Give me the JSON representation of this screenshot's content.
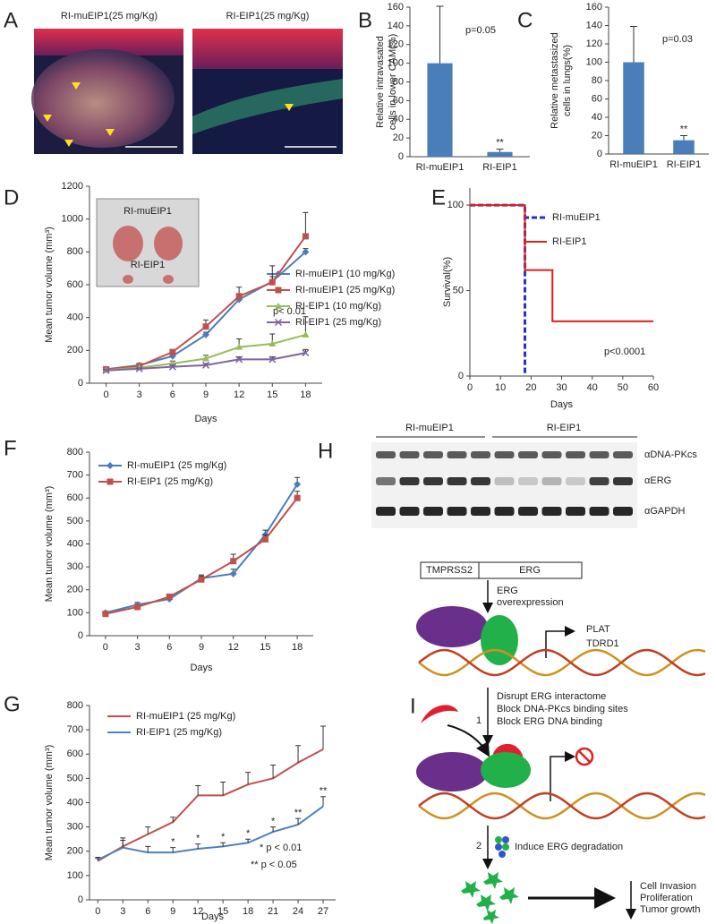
{
  "panel_a": {
    "panel_label": "A",
    "images": [
      {
        "title": "RI-muEIP1(25 mg/Kg)"
      },
      {
        "title": "RI-EIP1(25 mg/Kg)"
      }
    ]
  },
  "chart_data": [
    {
      "type": "bar",
      "panel_label": "B",
      "ylabel": [
        "Relative intravasated",
        "cells in lower CAM(%)"
      ],
      "categories": [
        "RI-muEIP1",
        "RI-EIP1"
      ],
      "values": [
        100,
        5
      ],
      "errors": [
        61,
        3
      ],
      "significance": [
        null,
        "**"
      ],
      "color": "#4a7ebb",
      "ylim": [
        0,
        160
      ],
      "yticks": [
        0,
        20,
        40,
        60,
        80,
        100,
        120,
        140,
        160
      ],
      "annotations": [
        "p=0.05"
      ]
    },
    {
      "type": "bar",
      "panel_label": "C",
      "ylabel": [
        "Relative metastasized",
        "cells in lungs(%)"
      ],
      "categories": [
        "RI-muEIP1",
        "RI-EIP1"
      ],
      "values": [
        100,
        15
      ],
      "errors": [
        39,
        5
      ],
      "significance": [
        null,
        "**"
      ],
      "color": "#4a7ebb",
      "ylim": [
        0,
        160
      ],
      "yticks": [
        0,
        20,
        40,
        60,
        80,
        100,
        120,
        140,
        160
      ],
      "annotations": [
        "p=0.03"
      ]
    },
    {
      "type": "line",
      "panel_label": "D",
      "xlabel": "Days",
      "ylabel": "Mean tumor volume (mm³)",
      "x": [
        0,
        3,
        6,
        9,
        12,
        15,
        18
      ],
      "xlim": [
        -1.5,
        19.5
      ],
      "xticks": [
        0,
        3,
        6,
        9,
        12,
        15,
        18
      ],
      "ylim": [
        0,
        1200
      ],
      "yticks": [
        0,
        200,
        400,
        600,
        800,
        1000,
        1200
      ],
      "series": [
        {
          "name": "RI-muEIP1 (10 mg/Kg)",
          "color": "#4a7ebb",
          "marker": "diamond",
          "values": [
            85,
            110,
            165,
            295,
            510,
            620,
            800
          ],
          "errors": [
            5,
            10,
            10,
            15,
            20,
            30,
            20
          ]
        },
        {
          "name": "RI-muEIP1 (25 mg/Kg)",
          "color": "#c0504d",
          "marker": "square",
          "values": [
            85,
            105,
            190,
            345,
            530,
            615,
            895
          ],
          "errors": [
            5,
            10,
            15,
            40,
            55,
            100,
            145
          ]
        },
        {
          "name": "RI-EIP1 (10 mg/Kg)",
          "color": "#9bbb59",
          "marker": "triangle",
          "values": [
            80,
            95,
            120,
            150,
            220,
            240,
            295
          ],
          "errors": [
            5,
            5,
            15,
            20,
            50,
            60,
            110
          ]
        },
        {
          "name": "RI-EIP1 (25 mg/Kg)",
          "color": "#8064a2",
          "marker": "x",
          "values": [
            78,
            88,
            100,
            110,
            145,
            145,
            185
          ],
          "errors": [
            5,
            5,
            10,
            10,
            15,
            15,
            20
          ]
        }
      ],
      "annotations": [
        "p< 0.01"
      ],
      "inset_labels": [
        "RI-muEIP1",
        "RI-EIP1"
      ]
    },
    {
      "type": "step",
      "panel_label": "E",
      "xlabel": "Days",
      "ylabel": "Survival(%)",
      "xlim": [
        0,
        60
      ],
      "xticks": [
        0,
        10,
        20,
        30,
        40,
        50,
        60
      ],
      "ylim": [
        0,
        110
      ],
      "yticks": [
        0,
        50,
        100
      ],
      "series": [
        {
          "name": "RI-muEIP1",
          "color": "#2233cc",
          "dash": true,
          "marker": "none",
          "x": [
            0,
            18,
            18
          ],
          "values": [
            100,
            100,
            0
          ]
        },
        {
          "name": "RI-EIP1",
          "color": "#e02020",
          "dash": false,
          "marker": "none",
          "x": [
            0,
            18,
            18,
            27,
            27,
            60
          ],
          "values": [
            100,
            100,
            62,
            62,
            32,
            32
          ]
        }
      ],
      "annotations": [
        "p<0.0001"
      ]
    },
    {
      "type": "line",
      "panel_label": "F",
      "xlabel": "Days",
      "ylabel": "Mean tumor volume (mm³)",
      "x": [
        0,
        3,
        6,
        9,
        12,
        15,
        18
      ],
      "xlim": [
        -1.5,
        19.5
      ],
      "xticks": [
        0,
        3,
        6,
        9,
        12,
        15,
        18
      ],
      "ylim": [
        0,
        800
      ],
      "yticks": [
        0,
        100,
        200,
        300,
        400,
        500,
        600,
        700,
        800
      ],
      "series": [
        {
          "name": "RI-muEIP1 (25 mg/Kg)",
          "color": "#4a7ebb",
          "marker": "diamond",
          "values": [
            100,
            135,
            160,
            250,
            270,
            440,
            660
          ],
          "errors": [
            5,
            10,
            10,
            15,
            20,
            20,
            30
          ]
        },
        {
          "name": "RI-EIP1 (25 mg/Kg)",
          "color": "#c0504d",
          "marker": "square",
          "values": [
            95,
            125,
            170,
            245,
            325,
            420,
            600
          ],
          "errors": [
            5,
            10,
            10,
            15,
            30,
            20,
            30
          ]
        }
      ],
      "annotations": []
    },
    {
      "type": "line",
      "panel_label": "G",
      "xlabel": "Days",
      "ylabel": "Mean tumor volume (mm³)",
      "x": [
        0,
        3,
        6,
        9,
        12,
        15,
        18,
        21,
        24,
        27
      ],
      "xlim": [
        -1,
        28.5
      ],
      "xticks": [
        0,
        3,
        6,
        9,
        12,
        15,
        18,
        21,
        24,
        27
      ],
      "ylim": [
        0,
        800
      ],
      "yticks": [
        0,
        100,
        200,
        300,
        400,
        500,
        600,
        700,
        800
      ],
      "series": [
        {
          "name": "RI-muEIP1 (25 mg/Kg)",
          "color": "#c0504d",
          "marker": "none",
          "values": [
            160,
            220,
            270,
            320,
            430,
            430,
            475,
            500,
            565,
            620
          ],
          "errors": [
            10,
            35,
            30,
            20,
            40,
            55,
            50,
            55,
            70,
            95
          ]
        },
        {
          "name": "RI-EIP1 (25 mg/Kg)",
          "color": "#4f81bd",
          "marker": "none",
          "values": [
            165,
            215,
            195,
            195,
            210,
            220,
            235,
            280,
            310,
            385
          ],
          "errors": [
            10,
            30,
            25,
            20,
            20,
            15,
            15,
            20,
            25,
            40
          ],
          "significance": [
            null,
            null,
            null,
            "*",
            "*",
            "*",
            "*",
            "*",
            "**",
            "**"
          ]
        }
      ],
      "annotations": [
        "* p < 0.01",
        "** p < 0.05"
      ]
    }
  ],
  "panel_h": {
    "panel_label": "H",
    "groups": [
      "RI-muEIP1",
      "RI-EIP1"
    ],
    "rows": [
      "αDNA-PKcs",
      "αERG",
      "αGAPDH"
    ]
  },
  "panel_i": {
    "panel_label": "I",
    "gene_boxes": [
      "TMPRSS2",
      "ERG"
    ],
    "overexpression": [
      "ERG",
      "overexpression"
    ],
    "targets": [
      "PLAT",
      "TDRD1"
    ],
    "step_1": {
      "number": "1",
      "lines": [
        "Disrupt ERG interactome",
        "Block DNA-PKcs binding sites",
        "Block ERG DNA binding"
      ]
    },
    "step_2": {
      "number": "2",
      "text": "Induce ERG degradation"
    },
    "outcomes": [
      "Cell Invasion",
      "Proliferation",
      "Tumor growth"
    ]
  }
}
